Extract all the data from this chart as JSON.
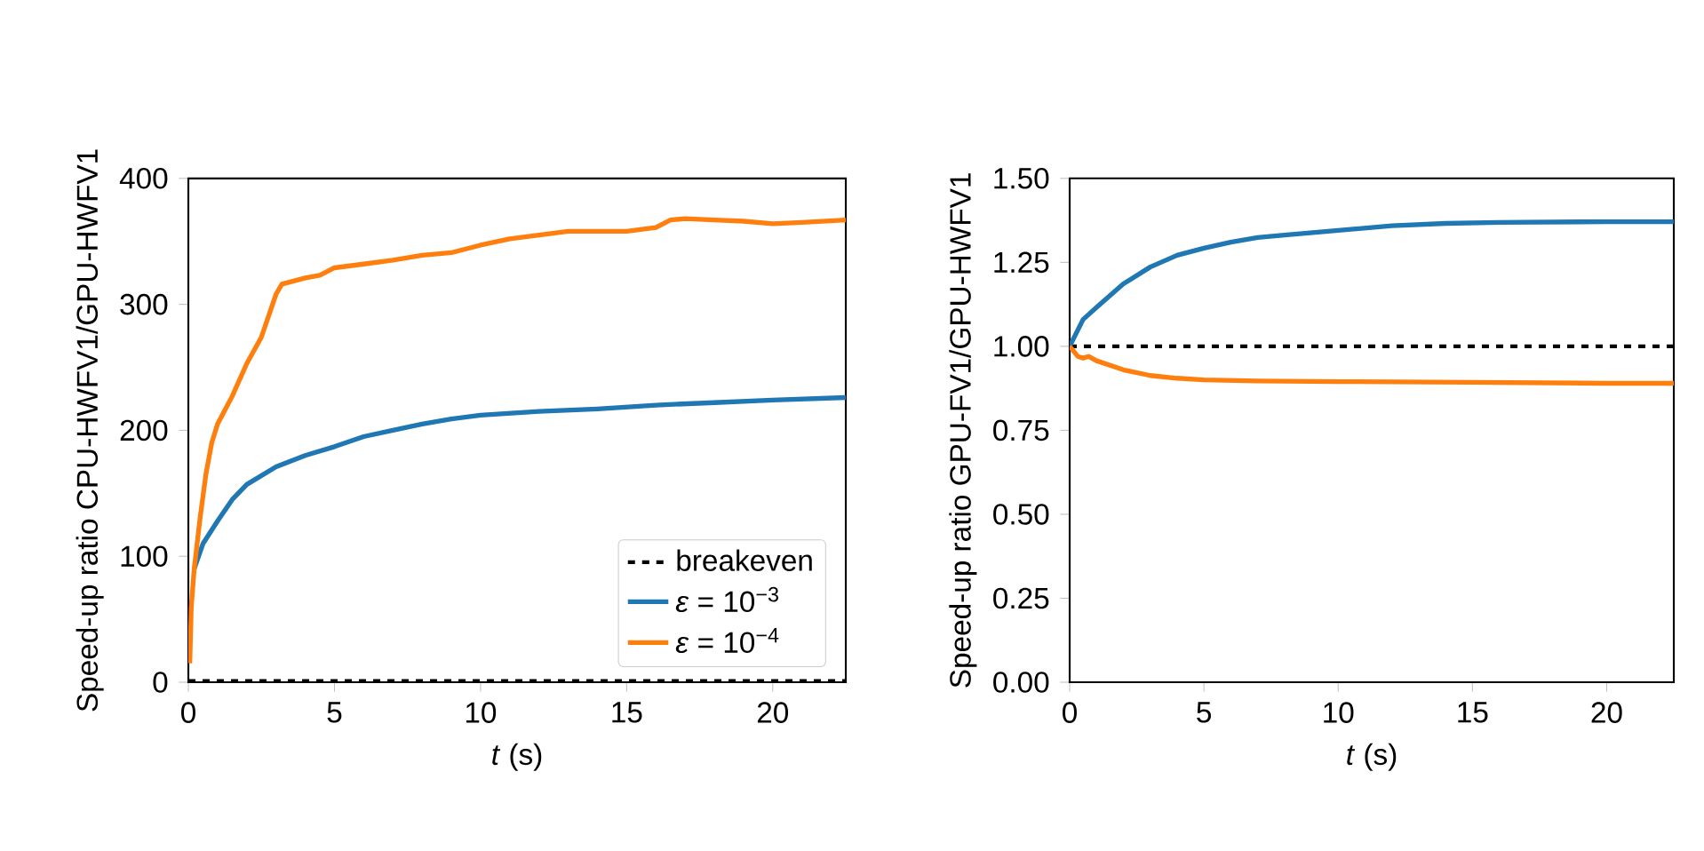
{
  "chart_data": [
    {
      "type": "line",
      "xlabel": "*t* (s)",
      "ylabel": "Speed-up ratio CPU-HWFV1/GPU-HWFV1",
      "xlim": [
        0,
        22.5
      ],
      "ylim": [
        0,
        400
      ],
      "xticks": [
        0,
        5,
        10,
        15,
        20
      ],
      "yticks": [
        0,
        100,
        200,
        300,
        400
      ],
      "legend": "bottom right",
      "ref_lines": [
        {
          "axis": "y",
          "value": 1,
          "label": "breakeven",
          "color": "#000000",
          "line_style": "dashed"
        }
      ],
      "series": [
        {
          "name": "*ε* = 10$^{−3}$",
          "color": "#1f77b4",
          "x": [
            0.2,
            0.5,
            1,
            1.5,
            2,
            3,
            4,
            5,
            6,
            7,
            8,
            9,
            10,
            12,
            14,
            16,
            18,
            20,
            22.5
          ],
          "values": [
            90,
            110,
            128,
            145,
            157,
            171,
            180,
            187,
            195,
            200,
            205,
            209,
            212,
            215,
            217,
            220,
            222,
            224,
            226
          ]
        },
        {
          "name": "*ε* = 10$^{−4}$",
          "color": "#ff7f0e",
          "x": [
            0.05,
            0.1,
            0.2,
            0.4,
            0.6,
            0.8,
            1,
            1.5,
            2,
            2.5,
            3,
            3.2,
            4,
            4.5,
            5,
            6,
            7,
            8,
            9,
            10,
            11,
            12,
            13,
            14,
            15,
            16,
            16.5,
            17,
            18,
            19,
            20,
            21,
            22.5
          ],
          "values": [
            15,
            60,
            90,
            130,
            165,
            190,
            205,
            227,
            253,
            274,
            308,
            316,
            321,
            323,
            329,
            332,
            335,
            339,
            341,
            347,
            352,
            355,
            358,
            358,
            358,
            361,
            367,
            368,
            367,
            366,
            364,
            365,
            367
          ]
        }
      ]
    },
    {
      "type": "line",
      "xlabel": "*t* (s)",
      "ylabel": "Speed-up ratio GPU-FV1/GPU-HWFV1",
      "xlim": [
        0,
        22.5
      ],
      "ylim": [
        0,
        1.5
      ],
      "xticks": [
        0,
        5,
        10,
        15,
        20
      ],
      "yticks": [
        {
          "value": 0,
          "label": "0.00"
        },
        {
          "value": 0.25,
          "label": "0.25"
        },
        {
          "value": 0.5,
          "label": "0.50"
        },
        {
          "value": 0.75,
          "label": "0.75"
        },
        {
          "value": 1,
          "label": "1.00"
        },
        {
          "value": 1.25,
          "label": "1.25"
        },
        {
          "value": 1.5,
          "label": "1.50"
        }
      ],
      "ref_lines": [
        {
          "axis": "y",
          "value": 1,
          "color": "#000000",
          "line_style": "dashed"
        }
      ],
      "series": [
        {
          "color": "#1f77b4",
          "x": [
            0,
            0.5,
            1,
            2,
            3,
            4,
            5,
            6,
            7,
            8,
            10,
            12,
            14,
            16,
            18,
            20,
            22.5
          ],
          "values": [
            1.0,
            1.08,
            1.116,
            1.186,
            1.236,
            1.271,
            1.292,
            1.31,
            1.324,
            1.331,
            1.345,
            1.359,
            1.366,
            1.369,
            1.37,
            1.371,
            1.371
          ]
        },
        {
          "color": "#ff7f0e",
          "x": [
            0,
            0.3,
            0.5,
            0.7,
            1,
            2,
            3,
            4,
            5,
            7,
            10,
            15,
            20,
            22.5
          ],
          "values": [
            1.0,
            0.97,
            0.965,
            0.97,
            0.957,
            0.93,
            0.913,
            0.905,
            0.9,
            0.897,
            0.895,
            0.893,
            0.89,
            0.89
          ]
        }
      ]
    }
  ]
}
